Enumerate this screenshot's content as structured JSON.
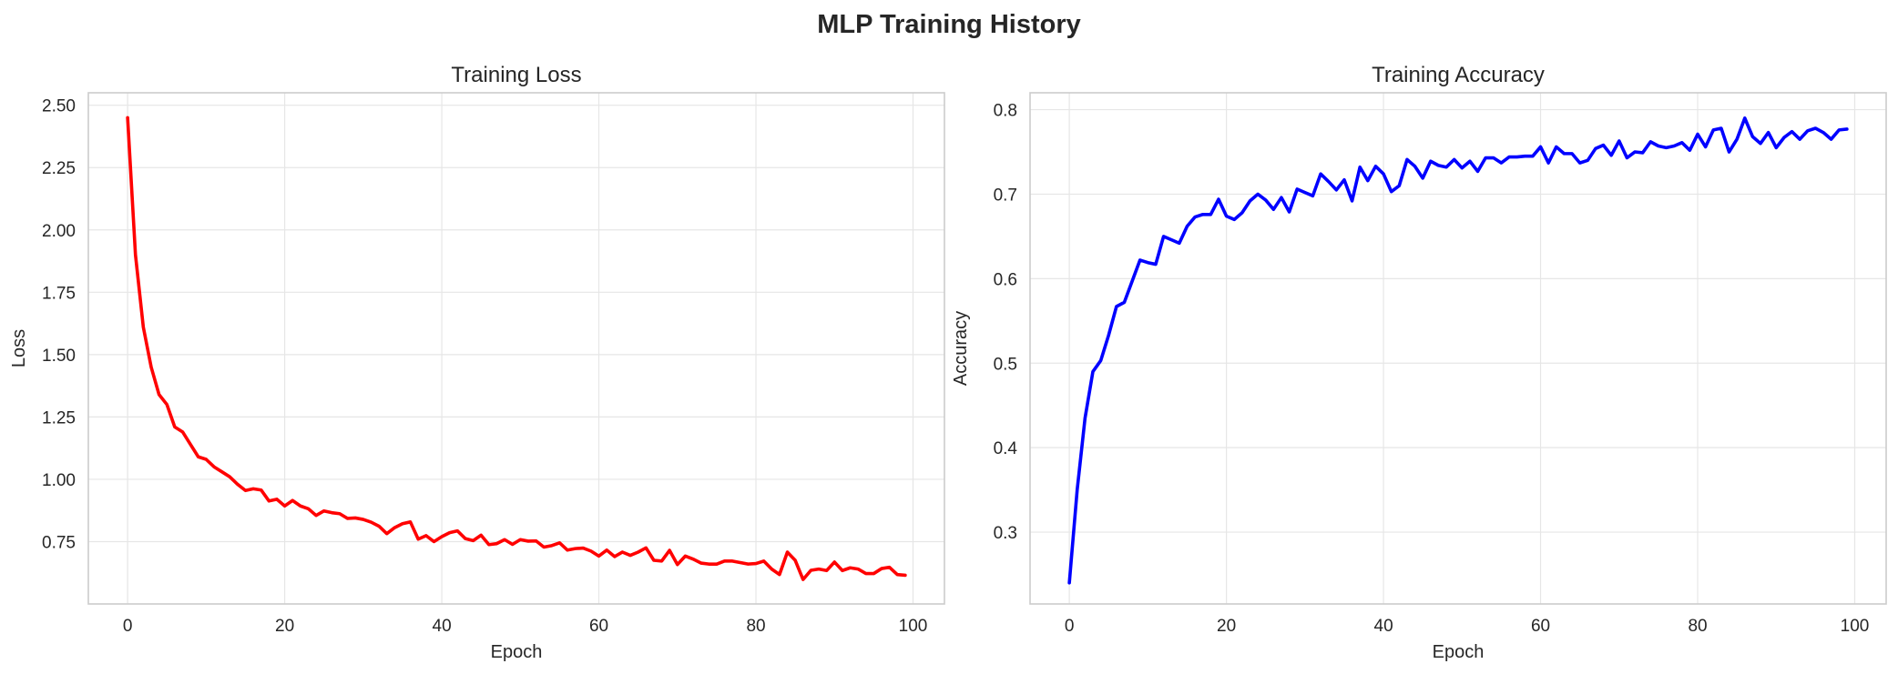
{
  "figure": {
    "suptitle": "MLP Training History"
  },
  "chart_data": [
    {
      "type": "line",
      "title": "Training Loss",
      "xlabel": "Epoch",
      "ylabel": "Loss",
      "xlim": [
        -5,
        104
      ],
      "ylim": [
        0.5,
        2.55
      ],
      "xticks": [
        0,
        20,
        40,
        60,
        80,
        100
      ],
      "yticks": [
        0.75,
        1.0,
        1.25,
        1.5,
        1.75,
        2.0,
        2.25,
        2.5
      ],
      "xtick_labels": [
        "0",
        "20",
        "40",
        "60",
        "80",
        "100"
      ],
      "ytick_labels": [
        "0.75",
        "1.00",
        "1.25",
        "1.50",
        "1.75",
        "2.00",
        "2.25",
        "2.50"
      ],
      "grid": true,
      "color": "#ff0000",
      "series": [
        {
          "x": [
            0,
            1,
            2,
            3,
            4,
            5,
            6,
            7,
            8,
            9,
            10,
            11,
            12,
            13,
            14,
            15,
            16,
            17,
            18,
            19,
            20,
            21,
            22,
            23,
            24,
            25,
            26,
            27,
            28,
            29,
            30,
            31,
            32,
            33,
            34,
            35,
            36,
            37,
            38,
            39,
            40,
            41,
            42,
            43,
            44,
            45,
            46,
            47,
            48,
            49,
            50,
            51,
            52,
            53,
            54,
            55,
            56,
            57,
            58,
            59,
            60,
            61,
            62,
            63,
            64,
            65,
            66,
            67,
            68,
            69,
            70,
            71,
            72,
            73,
            74,
            75,
            76,
            77,
            78,
            79,
            80,
            81,
            82,
            83,
            84,
            85,
            86,
            87,
            88,
            89,
            90,
            91,
            92,
            93,
            94,
            95,
            96,
            97,
            98,
            99
          ],
          "y": [
            2.45,
            1.9,
            1.61,
            1.45,
            1.34,
            1.3,
            1.21,
            1.19,
            1.14,
            1.09,
            1.08,
            1.05,
            1.03,
            1.01,
            0.98,
            0.955,
            0.962,
            0.957,
            0.913,
            0.92,
            0.893,
            0.915,
            0.893,
            0.882,
            0.855,
            0.873,
            0.866,
            0.862,
            0.843,
            0.845,
            0.839,
            0.828,
            0.812,
            0.782,
            0.806,
            0.822,
            0.829,
            0.76,
            0.774,
            0.75,
            0.77,
            0.786,
            0.793,
            0.762,
            0.754,
            0.776,
            0.738,
            0.742,
            0.758,
            0.739,
            0.758,
            0.752,
            0.753,
            0.728,
            0.734,
            0.745,
            0.716,
            0.722,
            0.724,
            0.712,
            0.692,
            0.716,
            0.69,
            0.708,
            0.695,
            0.708,
            0.725,
            0.675,
            0.672,
            0.715,
            0.658,
            0.692,
            0.68,
            0.664,
            0.66,
            0.66,
            0.672,
            0.672,
            0.666,
            0.66,
            0.662,
            0.672,
            0.64,
            0.618,
            0.708,
            0.675,
            0.598,
            0.635,
            0.64,
            0.634,
            0.668,
            0.634,
            0.645,
            0.64,
            0.622,
            0.622,
            0.642,
            0.647,
            0.618,
            0.615
          ]
        }
      ]
    },
    {
      "type": "line",
      "title": "Training Accuracy",
      "xlabel": "Epoch",
      "ylabel": "Accuracy",
      "xlim": [
        -5,
        104
      ],
      "ylim": [
        0.215,
        0.82
      ],
      "xticks": [
        0,
        20,
        40,
        60,
        80,
        100
      ],
      "yticks": [
        0.3,
        0.4,
        0.5,
        0.6,
        0.7,
        0.8
      ],
      "xtick_labels": [
        "0",
        "20",
        "40",
        "60",
        "80",
        "100"
      ],
      "ytick_labels": [
        "0.3",
        "0.4",
        "0.5",
        "0.6",
        "0.7",
        "0.8"
      ],
      "grid": true,
      "color": "#0000ff",
      "series": [
        {
          "x": [
            0,
            1,
            2,
            3,
            4,
            5,
            6,
            7,
            8,
            9,
            10,
            11,
            12,
            13,
            14,
            15,
            16,
            17,
            18,
            19,
            20,
            21,
            22,
            23,
            24,
            25,
            26,
            27,
            28,
            29,
            30,
            31,
            32,
            33,
            34,
            35,
            36,
            37,
            38,
            39,
            40,
            41,
            42,
            43,
            44,
            45,
            46,
            47,
            48,
            49,
            50,
            51,
            52,
            53,
            54,
            55,
            56,
            57,
            58,
            59,
            60,
            61,
            62,
            63,
            64,
            65,
            66,
            67,
            68,
            69,
            70,
            71,
            72,
            73,
            74,
            75,
            76,
            77,
            78,
            79,
            80,
            81,
            82,
            83,
            84,
            85,
            86,
            87,
            88,
            89,
            90,
            91,
            92,
            93,
            94,
            95,
            96,
            97,
            98,
            99
          ],
          "y": [
            0.24,
            0.35,
            0.435,
            0.49,
            0.503,
            0.533,
            0.567,
            0.572,
            0.597,
            0.622,
            0.619,
            0.617,
            0.65,
            0.646,
            0.642,
            0.662,
            0.673,
            0.676,
            0.676,
            0.694,
            0.674,
            0.67,
            0.678,
            0.692,
            0.7,
            0.693,
            0.682,
            0.696,
            0.679,
            0.706,
            0.702,
            0.698,
            0.724,
            0.715,
            0.705,
            0.717,
            0.692,
            0.732,
            0.716,
            0.733,
            0.724,
            0.703,
            0.71,
            0.741,
            0.733,
            0.719,
            0.739,
            0.734,
            0.732,
            0.741,
            0.731,
            0.739,
            0.727,
            0.743,
            0.743,
            0.737,
            0.744,
            0.744,
            0.745,
            0.745,
            0.756,
            0.737,
            0.756,
            0.748,
            0.748,
            0.737,
            0.74,
            0.754,
            0.758,
            0.746,
            0.763,
            0.743,
            0.75,
            0.749,
            0.762,
            0.757,
            0.755,
            0.757,
            0.761,
            0.752,
            0.771,
            0.756,
            0.776,
            0.778,
            0.75,
            0.765,
            0.79,
            0.768,
            0.76,
            0.773,
            0.755,
            0.767,
            0.774,
            0.765,
            0.775,
            0.778,
            0.773,
            0.765,
            0.776,
            0.777
          ]
        }
      ]
    }
  ]
}
